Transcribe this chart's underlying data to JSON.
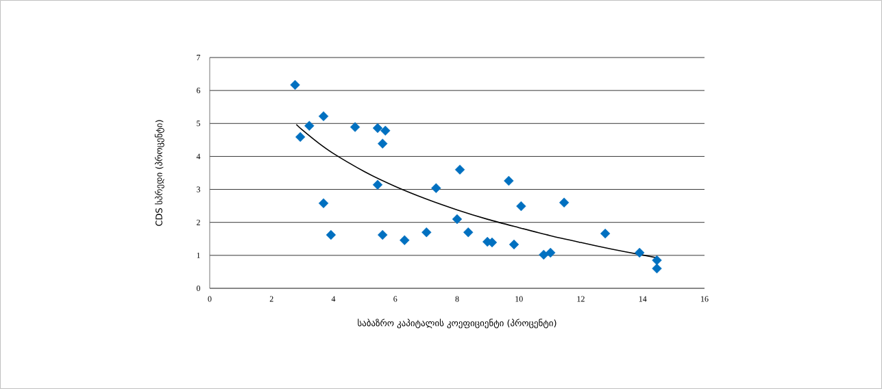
{
  "chart_data": {
    "type": "scatter",
    "xlabel": "საბაზრო კაპიტალის კოეფიციენტი (პროცენტი)",
    "ylabel": "CDS სპრედი (პროცენტი)",
    "xlim": [
      0,
      16
    ],
    "ylim": [
      0,
      7
    ],
    "xticks": [
      0,
      2,
      4,
      6,
      8,
      10,
      12,
      14,
      16
    ],
    "yticks": [
      0,
      1,
      2,
      3,
      4,
      5,
      6,
      7
    ],
    "grid": "y",
    "marker": "diamond",
    "series": [
      {
        "color": "#0070c0",
        "x": [
          2.76,
          2.93,
          3.22,
          3.68,
          3.68,
          3.92,
          4.7,
          5.43,
          5.68,
          5.59,
          5.43,
          5.59,
          6.3,
          7.01,
          7.32,
          8.09,
          8.0,
          8.36,
          8.98,
          9.13,
          9.67,
          9.84,
          10.07,
          10.8,
          11.02,
          11.46,
          12.79,
          13.9,
          14.46,
          14.46
        ],
        "values": [
          6.17,
          4.59,
          4.93,
          5.22,
          2.58,
          1.62,
          4.89,
          4.86,
          4.78,
          4.39,
          3.14,
          1.62,
          1.46,
          1.7,
          3.04,
          3.6,
          2.1,
          1.7,
          1.41,
          1.39,
          3.26,
          1.33,
          2.49,
          1.02,
          1.08,
          2.6,
          1.66,
          1.08,
          0.85,
          0.6
        ]
      },
      {
        "type": "line",
        "color": "#000000",
        "marker": "none",
        "x": [
          2.8,
          3,
          3.5,
          4,
          5,
          6,
          7,
          8,
          9,
          10,
          11,
          12,
          13,
          14,
          14.5
        ],
        "values": [
          4.97,
          4.8,
          4.42,
          4.09,
          3.54,
          3.09,
          2.71,
          2.38,
          2.09,
          1.84,
          1.6,
          1.39,
          1.19,
          1.01,
          0.92
        ]
      }
    ]
  }
}
